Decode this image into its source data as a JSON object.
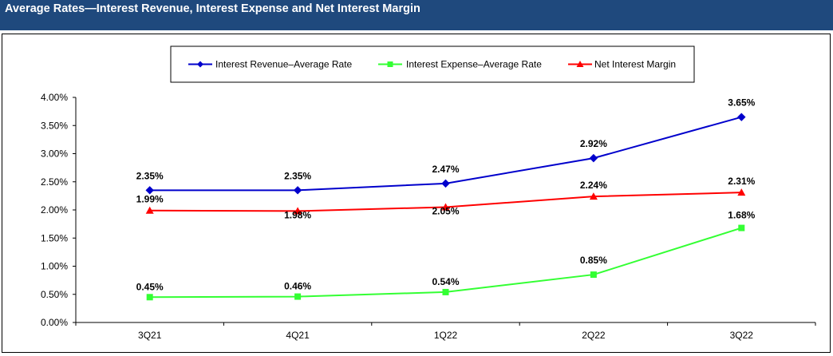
{
  "header": {
    "title": "Average Rates—Interest Revenue, Interest Expense and Net Interest Margin"
  },
  "chart_data": {
    "type": "line",
    "title": "Average Rates—Interest Revenue, Interest Expense and Net Interest Margin",
    "categories": [
      "3Q21",
      "4Q21",
      "1Q22",
      "2Q22",
      "3Q22"
    ],
    "ylim": [
      0,
      4.0
    ],
    "yticks": [
      "0.00%",
      "0.50%",
      "1.00%",
      "1.50%",
      "2.00%",
      "2.50%",
      "3.00%",
      "3.50%",
      "4.00%"
    ],
    "legend_position": "top-center",
    "grid": false,
    "series": [
      {
        "name": "Interest Revenue–Average Rate",
        "color": "#0000cc",
        "marker": "diamond",
        "values": [
          2.35,
          2.35,
          2.47,
          2.92,
          3.65
        ],
        "labels": [
          "2.35%",
          "2.35%",
          "2.47%",
          "2.92%",
          "3.65%"
        ]
      },
      {
        "name": "Interest Expense–Average Rate",
        "color": "#33ff33",
        "marker": "square",
        "values": [
          0.45,
          0.46,
          0.54,
          0.85,
          1.68
        ],
        "labels": [
          "0.45%",
          "0.46%",
          "0.54%",
          "0.85%",
          "1.68%"
        ]
      },
      {
        "name": "Net Interest Margin",
        "color": "#ff0000",
        "marker": "triangle",
        "values": [
          1.99,
          1.98,
          2.05,
          2.24,
          2.31
        ],
        "labels": [
          "1.99%",
          "1.98%",
          "2.05%",
          "2.24%",
          "2.31%"
        ]
      }
    ]
  }
}
